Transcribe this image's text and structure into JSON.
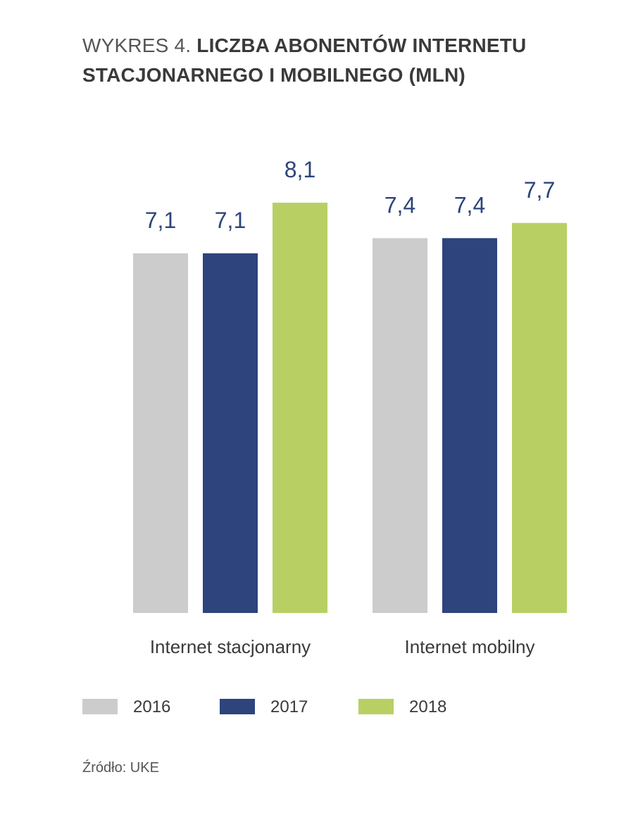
{
  "title": {
    "prefix": "WYKRES 4.",
    "main": "LICZBA ABONENTÓW INTERNETU STACJONARNEGO I MOBILNEGO (MLN)"
  },
  "colors": {
    "2016": "#cccccc",
    "2017": "#2d447c",
    "2018": "#b8d063",
    "value_label": "#2d447c",
    "text": "#3a3a3a"
  },
  "chart_data": {
    "type": "bar",
    "categories": [
      "Internet stacjonarny",
      "Internet mobilny"
    ],
    "series": [
      {
        "name": "2016",
        "values": [
          7.1,
          7.4
        ],
        "labels": [
          "7,1",
          "7,4"
        ]
      },
      {
        "name": "2017",
        "values": [
          7.1,
          7.4
        ],
        "labels": [
          "7,1",
          "7,4"
        ]
      },
      {
        "name": "2018",
        "values": [
          8.1,
          7.7
        ],
        "labels": [
          "8,1",
          "7,7"
        ]
      }
    ],
    "ylim": [
      0,
      8.1
    ],
    "grid": false,
    "legend_position": "bottom"
  },
  "source": "Źródło: UKE"
}
